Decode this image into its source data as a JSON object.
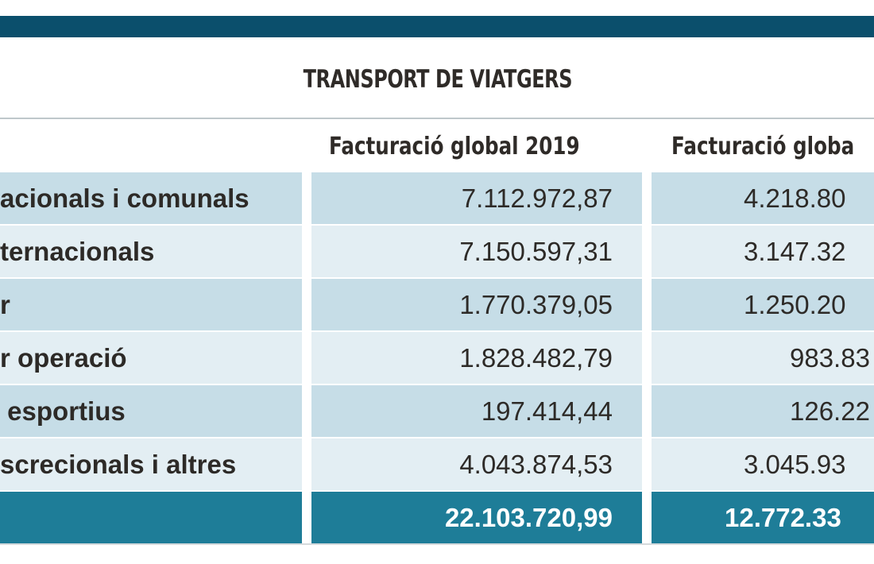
{
  "title": "TRANSPORT DE VIATGERS",
  "headers": [
    "Facturació global 2019",
    "Facturació globa"
  ],
  "rows": [
    {
      "label": "acionals i comunals",
      "v2019": "7.112.972,87",
      "v2020": "4.218.80"
    },
    {
      "label": "ternacionals",
      "v2019": "7.150.597,31",
      "v2020": "3.147.32"
    },
    {
      "label": "r",
      "v2019": "1.770.379,05",
      "v2020": "1.250.20"
    },
    {
      "label": "r operació",
      "v2019": "1.828.482,79",
      "v2020": "983.83"
    },
    {
      "label": " esportius",
      "v2019": "197.414,44",
      "v2020": "126.22"
    },
    {
      "label": "screcionals i altres",
      "v2019": "4.043.874,53",
      "v2020": "3.045.93"
    }
  ],
  "total": {
    "v2019": "22.103.720,99",
    "v2020": "12.772.33"
  },
  "colors": {
    "bar": "#0b4f6c",
    "row_dark": "#c6dde7",
    "row_light": "#e3eef3",
    "total": "#1e7d98"
  }
}
